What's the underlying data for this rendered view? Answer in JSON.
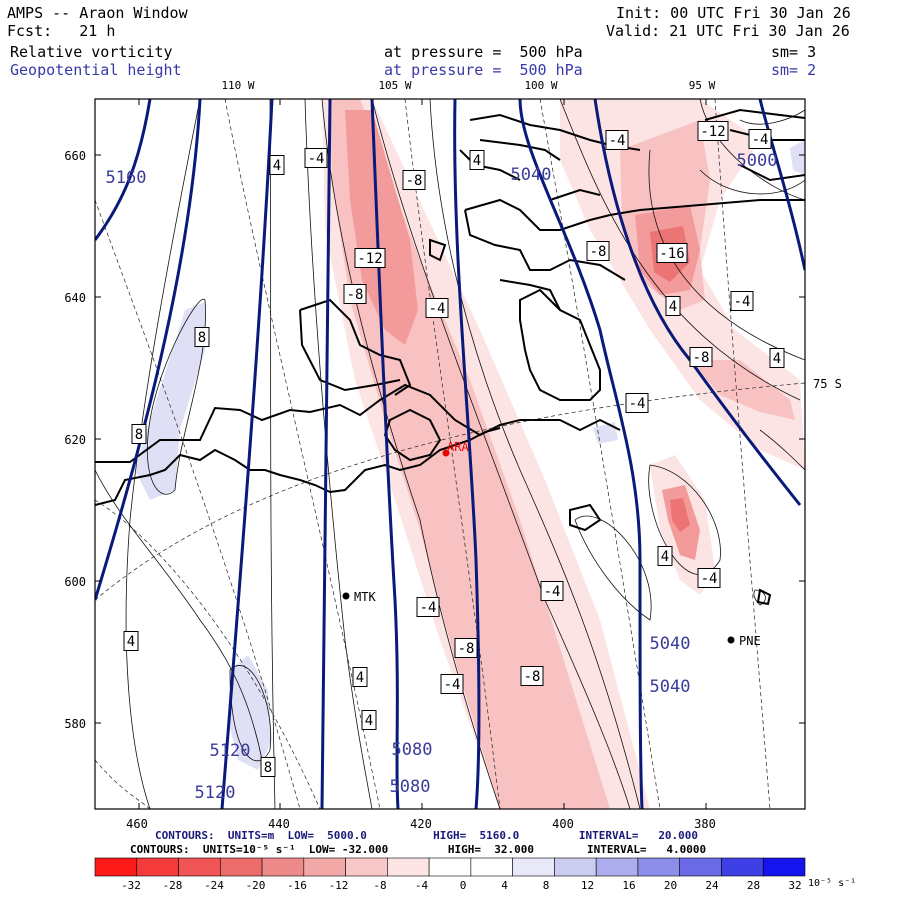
{
  "header": {
    "model_title": "AMPS -- Araon Window",
    "forecast": "Fcst:   21 h",
    "init": "Init: 00 UTC Fri 30 Jan 26",
    "valid": "Valid: 21 UTC Fri 30 Jan 26",
    "field1": "Relative vorticity",
    "field1_pressure": "at pressure =  500 hPa",
    "field1_sm": "sm= 3",
    "field2": "Geopotential height",
    "field2_pressure": "at pressure =  500 hPa",
    "field2_sm": "sm= 2"
  },
  "map": {
    "top_ticks": [
      "110 W",
      "105 W",
      "100 W",
      "95 W"
    ],
    "left_ticks": [
      "660",
      "640",
      "620",
      "600",
      "580"
    ],
    "bottom_ticks": [
      "460",
      "440",
      "420",
      "400",
      "380"
    ],
    "lat_label": "75 S",
    "stations": [
      {
        "name": "MTK"
      },
      {
        "name": "PNE"
      },
      {
        "name": "ARA"
      }
    ],
    "height_labels": [
      "5160",
      "5040",
      "5000",
      "5040",
      "5040",
      "5120",
      "5120",
      "5080",
      "5080"
    ],
    "vort_labels": [
      "4",
      "-4",
      "-8",
      "-12",
      "-8",
      "-4",
      "4",
      "-4",
      "-12",
      "-4",
      "-16",
      "-8",
      "4",
      "-4",
      "-8",
      "4",
      "-4",
      "8",
      "8",
      "4",
      "-4",
      "-8",
      "-4",
      "-8",
      "4",
      "4",
      "8",
      "4",
      "-4",
      "-4"
    ],
    "colors": {
      "height_contour": "#0a1a7a",
      "coast": "#000000",
      "neg_light": "#fde4e4",
      "neg_mid": "#f9c2c2",
      "neg_strong": "#f39a9a",
      "neg_core": "#ec7474",
      "pos_light": "#dfe0f5"
    }
  },
  "footer": {
    "line1": "CONTOURS:  UNITS=m  LOW=  5000.0          HIGH=  5160.0         INTERVAL=   20.000",
    "line2": "CONTOURS:  UNITS=10⁻⁵ s⁻¹  LOW= -32.000         HIGH=  32.000        INTERVAL=   4.0000"
  },
  "colorbar": {
    "labels": [
      "-32",
      "-28",
      "-24",
      "-20",
      "-16",
      "-12",
      "-8",
      "-4",
      "0",
      "4",
      "8",
      "12",
      "16",
      "20",
      "24",
      "28",
      "32"
    ],
    "unit": "10⁻⁵ s⁻¹",
    "colors": [
      "#ff1a1a",
      "#f53a3a",
      "#f05454",
      "#ec6c6c",
      "#ef8a8a",
      "#f3a8a8",
      "#f8c8c8",
      "#fde4e4",
      "#ffffff",
      "#ffffff",
      "#e8e8f8",
      "#ccccf0",
      "#adadee",
      "#8d8dea",
      "#6a6ae6",
      "#3f3fe6",
      "#1414ee"
    ]
  }
}
